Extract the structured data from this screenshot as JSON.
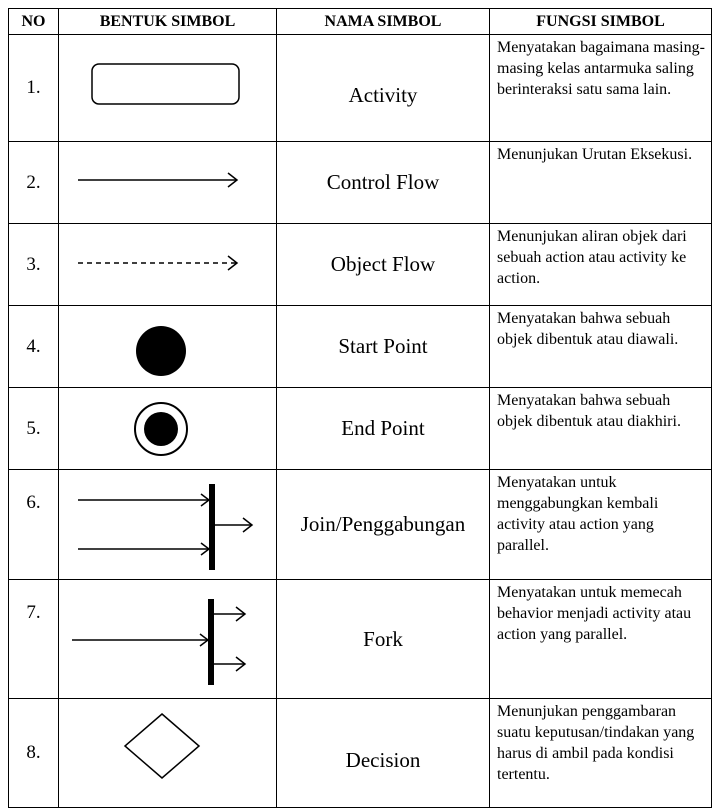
{
  "headers": {
    "no": "NO",
    "shape": "BENTUK SIMBOL",
    "name": "NAMA SIMBOL",
    "function": "FUNGSI SIMBOL"
  },
  "rows": [
    {
      "no": "1.",
      "shape_icon": "rounded-rectangle-icon",
      "name": "Activity",
      "function": "Menyatakan bagaimana masing-masing kelas antarmuka saling berinteraksi satu sama lain."
    },
    {
      "no": "2.",
      "shape_icon": "solid-arrow-icon",
      "name": "Control Flow",
      "function": "Menunjukan Urutan Eksekusi."
    },
    {
      "no": "3.",
      "shape_icon": "dashed-arrow-icon",
      "name": "Object Flow",
      "function": "Menunjukan aliran objek dari sebuah action atau activity ke action."
    },
    {
      "no": "4.",
      "shape_icon": "filled-circle-icon",
      "name": "Start Point",
      "function": "Menyatakan bahwa sebuah objek dibentuk atau diawali."
    },
    {
      "no": "5.",
      "shape_icon": "bullseye-circle-icon",
      "name": "End Point",
      "function": "Menyatakan bahwa sebuah objek dibentuk atau diakhiri."
    },
    {
      "no": "6.",
      "shape_icon": "join-bar-icon",
      "name": "Join/Penggabungan",
      "function": "Menyatakan untuk menggabungkan kembali activity atau action yang parallel."
    },
    {
      "no": "7.",
      "shape_icon": "fork-bar-icon",
      "name": "Fork",
      "function": "Menyatakan untuk memecah behavior menjadi activity atau action yang parallel."
    },
    {
      "no": "8.",
      "shape_icon": "diamond-icon",
      "name": "Decision",
      "function": "Menunjukan penggambaran suatu keputusan/tindakan yang harus di ambil pada kondisi tertentu."
    }
  ]
}
